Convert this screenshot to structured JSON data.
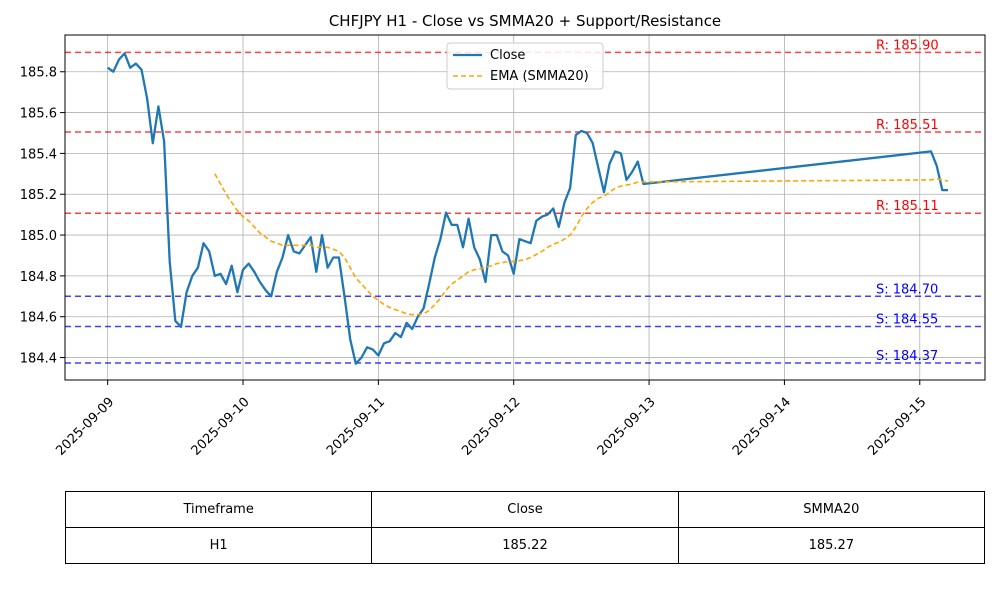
{
  "chart_data": {
    "type": "line",
    "title": "CHFJPY H1 - Close vs SMMA20 + Support/Resistance",
    "xlabel": "",
    "ylabel": "",
    "x_ticks": [
      "2025-09-09",
      "2025-09-10",
      "2025-09-11",
      "2025-09-12",
      "2025-09-13",
      "2025-09-14",
      "2025-09-15"
    ],
    "y_ticks": [
      "184.4",
      "184.6",
      "184.8",
      "185.0",
      "185.2",
      "185.4",
      "185.6",
      "185.8"
    ],
    "ylim": [
      184.29,
      185.98
    ],
    "x_range_days": [
      "2025-09-08 16:26",
      "2025-09-15 11:34"
    ],
    "grid": true,
    "legend_position": "top-center",
    "series": [
      {
        "name": "Close",
        "color": "#1f77b4",
        "style": "solid",
        "points": [
          [
            "2025-09-09 00:00",
            185.82
          ],
          [
            "2025-09-09 01:00",
            185.8
          ],
          [
            "2025-09-09 02:00",
            185.86
          ],
          [
            "2025-09-09 03:00",
            185.89
          ],
          [
            "2025-09-09 04:00",
            185.82
          ],
          [
            "2025-09-09 05:00",
            185.84
          ],
          [
            "2025-09-09 06:00",
            185.81
          ],
          [
            "2025-09-09 07:00",
            185.67
          ],
          [
            "2025-09-09 08:00",
            185.45
          ],
          [
            "2025-09-09 09:00",
            185.63
          ],
          [
            "2025-09-09 10:00",
            185.46
          ],
          [
            "2025-09-09 11:00",
            184.87
          ],
          [
            "2025-09-09 12:00",
            184.58
          ],
          [
            "2025-09-09 13:00",
            184.55
          ],
          [
            "2025-09-09 14:00",
            184.72
          ],
          [
            "2025-09-09 15:00",
            184.8
          ],
          [
            "2025-09-09 16:00",
            184.84
          ],
          [
            "2025-09-09 17:00",
            184.96
          ],
          [
            "2025-09-09 18:00",
            184.92
          ],
          [
            "2025-09-09 19:00",
            184.8
          ],
          [
            "2025-09-09 20:00",
            184.81
          ],
          [
            "2025-09-09 21:00",
            184.76
          ],
          [
            "2025-09-09 22:00",
            184.85
          ],
          [
            "2025-09-09 23:00",
            184.72
          ],
          [
            "2025-09-10 00:00",
            184.83
          ],
          [
            "2025-09-10 01:00",
            184.86
          ],
          [
            "2025-09-10 02:00",
            184.82
          ],
          [
            "2025-09-10 03:00",
            184.77
          ],
          [
            "2025-09-10 04:00",
            184.73
          ],
          [
            "2025-09-10 05:00",
            184.7
          ],
          [
            "2025-09-10 06:00",
            184.82
          ],
          [
            "2025-09-10 07:00",
            184.89
          ],
          [
            "2025-09-10 08:00",
            185.0
          ],
          [
            "2025-09-10 09:00",
            184.92
          ],
          [
            "2025-09-10 10:00",
            184.91
          ],
          [
            "2025-09-10 11:00",
            184.95
          ],
          [
            "2025-09-10 12:00",
            184.99
          ],
          [
            "2025-09-10 13:00",
            184.82
          ],
          [
            "2025-09-10 14:00",
            185.0
          ],
          [
            "2025-09-10 15:00",
            184.84
          ],
          [
            "2025-09-10 16:00",
            184.89
          ],
          [
            "2025-09-10 17:00",
            184.89
          ],
          [
            "2025-09-10 18:00",
            184.7
          ],
          [
            "2025-09-10 19:00",
            184.49
          ],
          [
            "2025-09-10 20:00",
            184.37
          ],
          [
            "2025-09-10 21:00",
            184.4
          ],
          [
            "2025-09-10 22:00",
            184.45
          ],
          [
            "2025-09-10 23:00",
            184.44
          ],
          [
            "2025-09-11 00:00",
            184.41
          ],
          [
            "2025-09-11 01:00",
            184.47
          ],
          [
            "2025-09-11 02:00",
            184.48
          ],
          [
            "2025-09-11 03:00",
            184.52
          ],
          [
            "2025-09-11 04:00",
            184.5
          ],
          [
            "2025-09-11 05:00",
            184.57
          ],
          [
            "2025-09-11 06:00",
            184.54
          ],
          [
            "2025-09-11 07:00",
            184.6
          ],
          [
            "2025-09-11 08:00",
            184.64
          ],
          [
            "2025-09-11 09:00",
            184.76
          ],
          [
            "2025-09-11 10:00",
            184.89
          ],
          [
            "2025-09-11 11:00",
            184.98
          ],
          [
            "2025-09-11 12:00",
            185.11
          ],
          [
            "2025-09-11 13:00",
            185.05
          ],
          [
            "2025-09-11 14:00",
            185.05
          ],
          [
            "2025-09-11 15:00",
            184.94
          ],
          [
            "2025-09-11 16:00",
            185.08
          ],
          [
            "2025-09-11 17:00",
            184.94
          ],
          [
            "2025-09-11 18:00",
            184.88
          ],
          [
            "2025-09-11 19:00",
            184.77
          ],
          [
            "2025-09-11 20:00",
            185.0
          ],
          [
            "2025-09-11 21:00",
            185.0
          ],
          [
            "2025-09-11 22:00",
            184.92
          ],
          [
            "2025-09-11 23:00",
            184.9
          ],
          [
            "2025-09-12 00:00",
            184.81
          ],
          [
            "2025-09-12 01:00",
            184.98
          ],
          [
            "2025-09-12 02:00",
            184.97
          ],
          [
            "2025-09-12 03:00",
            184.96
          ],
          [
            "2025-09-12 04:00",
            185.07
          ],
          [
            "2025-09-12 05:00",
            185.09
          ],
          [
            "2025-09-12 06:00",
            185.1
          ],
          [
            "2025-09-12 07:00",
            185.13
          ],
          [
            "2025-09-12 08:00",
            185.04
          ],
          [
            "2025-09-12 09:00",
            185.16
          ],
          [
            "2025-09-12 10:00",
            185.23
          ],
          [
            "2025-09-12 11:00",
            185.49
          ],
          [
            "2025-09-12 12:00",
            185.51
          ],
          [
            "2025-09-12 13:00",
            185.5
          ],
          [
            "2025-09-12 14:00",
            185.45
          ],
          [
            "2025-09-12 15:00",
            185.33
          ],
          [
            "2025-09-12 16:00",
            185.21
          ],
          [
            "2025-09-12 17:00",
            185.35
          ],
          [
            "2025-09-12 18:00",
            185.41
          ],
          [
            "2025-09-12 19:00",
            185.4
          ],
          [
            "2025-09-12 20:00",
            185.27
          ],
          [
            "2025-09-12 21:00",
            185.31
          ],
          [
            "2025-09-12 22:00",
            185.36
          ],
          [
            "2025-09-12 23:00",
            185.25
          ],
          [
            "2025-09-15 02:00",
            185.41
          ],
          [
            "2025-09-15 03:00",
            185.34
          ],
          [
            "2025-09-15 04:00",
            185.22
          ],
          [
            "2025-09-15 05:00",
            185.22
          ]
        ]
      },
      {
        "name": "EMA (SMMA20)",
        "color": "#ffa500",
        "style": "dashed",
        "points": [
          [
            "2025-09-09 19:00",
            185.3
          ],
          [
            "2025-09-09 20:00",
            185.25
          ],
          [
            "2025-09-09 21:00",
            185.2
          ],
          [
            "2025-09-09 22:00",
            185.16
          ],
          [
            "2025-09-09 23:00",
            185.12
          ],
          [
            "2025-09-10 00:00",
            185.09
          ],
          [
            "2025-09-10 01:00",
            185.07
          ],
          [
            "2025-09-10 02:00",
            185.04
          ],
          [
            "2025-09-10 03:00",
            185.01
          ],
          [
            "2025-09-10 04:00",
            184.99
          ],
          [
            "2025-09-10 05:00",
            184.97
          ],
          [
            "2025-09-10 06:00",
            184.96
          ],
          [
            "2025-09-10 07:00",
            184.95
          ],
          [
            "2025-09-10 08:00",
            184.95
          ],
          [
            "2025-09-10 09:00",
            184.95
          ],
          [
            "2025-09-10 10:00",
            184.95
          ],
          [
            "2025-09-10 11:00",
            184.95
          ],
          [
            "2025-09-10 12:00",
            184.95
          ],
          [
            "2025-09-10 13:00",
            184.94
          ],
          [
            "2025-09-10 14:00",
            184.94
          ],
          [
            "2025-09-10 15:00",
            184.94
          ],
          [
            "2025-09-10 16:00",
            184.93
          ],
          [
            "2025-09-10 17:00",
            184.92
          ],
          [
            "2025-09-10 18:00",
            184.89
          ],
          [
            "2025-09-10 19:00",
            184.84
          ],
          [
            "2025-09-10 20:00",
            184.79
          ],
          [
            "2025-09-10 21:00",
            184.76
          ],
          [
            "2025-09-10 22:00",
            184.73
          ],
          [
            "2025-09-10 23:00",
            184.7
          ],
          [
            "2025-09-11 00:00",
            184.68
          ],
          [
            "2025-09-11 01:00",
            184.66
          ],
          [
            "2025-09-11 02:00",
            184.645
          ],
          [
            "2025-09-11 03:00",
            184.635
          ],
          [
            "2025-09-11 04:00",
            184.625
          ],
          [
            "2025-09-11 05:00",
            184.615
          ],
          [
            "2025-09-11 06:00",
            184.61
          ],
          [
            "2025-09-11 07:00",
            184.61
          ],
          [
            "2025-09-11 08:00",
            184.615
          ],
          [
            "2025-09-11 09:00",
            184.63
          ],
          [
            "2025-09-11 10:00",
            184.66
          ],
          [
            "2025-09-11 11:00",
            184.69
          ],
          [
            "2025-09-11 12:00",
            184.73
          ],
          [
            "2025-09-11 13:00",
            184.76
          ],
          [
            "2025-09-11 14:00",
            184.78
          ],
          [
            "2025-09-11 15:00",
            184.8
          ],
          [
            "2025-09-11 16:00",
            184.82
          ],
          [
            "2025-09-11 17:00",
            184.83
          ],
          [
            "2025-09-11 18:00",
            184.835
          ],
          [
            "2025-09-11 19:00",
            184.84
          ],
          [
            "2025-09-11 20:00",
            184.85
          ],
          [
            "2025-09-11 21:00",
            184.86
          ],
          [
            "2025-09-11 22:00",
            184.865
          ],
          [
            "2025-09-11 23:00",
            184.87
          ],
          [
            "2025-09-12 00:00",
            184.87
          ],
          [
            "2025-09-12 01:00",
            184.875
          ],
          [
            "2025-09-12 02:00",
            184.88
          ],
          [
            "2025-09-12 03:00",
            184.89
          ],
          [
            "2025-09-12 04:00",
            184.905
          ],
          [
            "2025-09-12 05:00",
            184.92
          ],
          [
            "2025-09-12 06:00",
            184.94
          ],
          [
            "2025-09-12 07:00",
            184.955
          ],
          [
            "2025-09-12 08:00",
            184.965
          ],
          [
            "2025-09-12 09:00",
            184.98
          ],
          [
            "2025-09-12 10:00",
            185.0
          ],
          [
            "2025-09-12 11:00",
            185.04
          ],
          [
            "2025-09-12 12:00",
            185.09
          ],
          [
            "2025-09-12 13:00",
            185.13
          ],
          [
            "2025-09-12 14:00",
            185.16
          ],
          [
            "2025-09-12 15:00",
            185.18
          ],
          [
            "2025-09-12 16:00",
            185.19
          ],
          [
            "2025-09-12 17:00",
            185.21
          ],
          [
            "2025-09-12 18:00",
            185.23
          ],
          [
            "2025-09-12 19:00",
            185.24
          ],
          [
            "2025-09-12 20:00",
            185.245
          ],
          [
            "2025-09-12 21:00",
            185.25
          ],
          [
            "2025-09-12 22:00",
            185.26
          ],
          [
            "2025-09-12 23:00",
            185.26
          ],
          [
            "2025-09-15 02:00",
            185.27
          ],
          [
            "2025-09-15 03:00",
            185.275
          ],
          [
            "2025-09-15 04:00",
            185.27
          ],
          [
            "2025-09-15 05:00",
            185.265
          ]
        ]
      }
    ],
    "levels": [
      {
        "label": "R: 185.90",
        "value": 185.895,
        "color": "#ff0000",
        "kind": "resistance"
      },
      {
        "label": "R: 185.51",
        "value": 185.505,
        "color": "#ff0000",
        "kind": "resistance"
      },
      {
        "label": "R: 185.11",
        "value": 185.107,
        "color": "#ff0000",
        "kind": "resistance"
      },
      {
        "label": "S: 184.70",
        "value": 184.7,
        "color": "#0000ff",
        "kind": "support"
      },
      {
        "label": "S: 184.55",
        "value": 184.552,
        "color": "#0000ff",
        "kind": "support"
      },
      {
        "label": "S: 184.37",
        "value": 184.373,
        "color": "#0000ff",
        "kind": "support"
      }
    ]
  },
  "table": {
    "headers": [
      "Timeframe",
      "Close",
      "SMMA20"
    ],
    "rows": [
      [
        "H1",
        "185.22",
        "185.27"
      ]
    ]
  }
}
